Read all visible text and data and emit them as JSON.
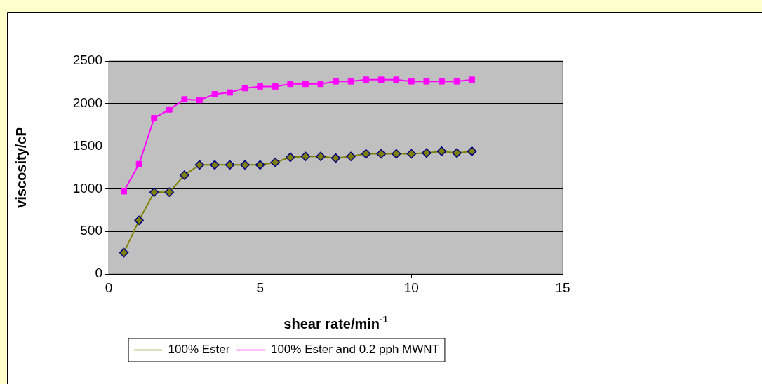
{
  "chart_data": {
    "type": "line",
    "xlabel": "shear rate/min$^{-1}$",
    "ylabel": "viscosity/cP",
    "x": [
      0.5,
      1,
      1.5,
      2,
      2.5,
      3,
      3.5,
      4,
      4.5,
      5,
      5.5,
      6,
      6.5,
      7,
      7.5,
      8,
      8.5,
      9,
      9.5,
      10,
      10.5,
      11,
      11.5,
      12
    ],
    "series": [
      {
        "name": "100% Ester",
        "color": "#808000",
        "marker": "diamond",
        "values": [
          250,
          630,
          960,
          960,
          1160,
          1280,
          1280,
          1280,
          1280,
          1280,
          1310,
          1370,
          1380,
          1380,
          1360,
          1380,
          1410,
          1410,
          1410,
          1410,
          1420,
          1440,
          1420,
          1440
        ]
      },
      {
        "name": "100% Ester and 0.2 pph MWNT",
        "color": "#ff00ff",
        "marker": "square",
        "values": [
          970,
          1290,
          1830,
          1930,
          2050,
          2040,
          2110,
          2130,
          2180,
          2200,
          2200,
          2230,
          2230,
          2230,
          2260,
          2260,
          2280,
          2280,
          2280,
          2260,
          2260,
          2260,
          2260,
          2280
        ]
      }
    ],
    "xlim": [
      0,
      15
    ],
    "xticks": [
      0,
      5,
      10,
      15
    ],
    "ylim": [
      0,
      2500
    ],
    "yticks": [
      0,
      500,
      1000,
      1500,
      2000,
      2500
    ],
    "grid": "y",
    "legend": "bottom",
    "line_style": "solid"
  }
}
